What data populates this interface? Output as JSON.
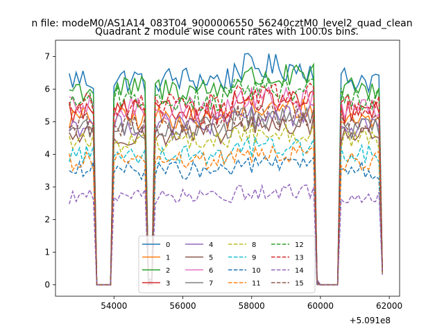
{
  "chart_data": {
    "type": "line",
    "suptitle": "n file: modeM0/AS1A14_083T04_9000006550_56240cztM0_level2_quad_clean",
    "title": "Quadrant 2 module wise count rates with 100.0s bins.",
    "xlabel": "",
    "ylabel": "",
    "offset_label": "+5.091e8",
    "xlim": [
      52300,
      62300
    ],
    "ylim": [
      -0.35,
      7.5
    ],
    "xticks": [
      54000,
      56000,
      58000,
      60000,
      62000
    ],
    "xtick_labels": [
      "54000",
      "56000",
      "58000",
      "60000",
      "62000"
    ],
    "yticks": [
      0,
      1,
      2,
      3,
      4,
      5,
      6,
      7
    ],
    "ytick_labels": [
      "0",
      "1",
      "2",
      "3",
      "4",
      "5",
      "6",
      "7"
    ],
    "x_start": 52700,
    "x_step": 100,
    "segments": [
      {
        "from": 52700,
        "to": 53400,
        "state": "on"
      },
      {
        "from": 53400,
        "to": 53900,
        "state": "off"
      },
      {
        "from": 54000,
        "to": 54900,
        "state": "on"
      },
      {
        "from": 55000,
        "to": 55100,
        "state": "dip"
      },
      {
        "from": 55200,
        "to": 59800,
        "state": "on"
      },
      {
        "from": 59800,
        "to": 59900,
        "state": "dip"
      },
      {
        "from": 60000,
        "to": 60500,
        "state": "off"
      },
      {
        "from": 60600,
        "to": 61700,
        "state": "on"
      },
      {
        "from": 61800,
        "to": 61800,
        "state": "end"
      }
    ],
    "series": [
      {
        "name": "0",
        "color": "#1f77b4",
        "dash": "solid",
        "level": 6.3
      },
      {
        "name": "1",
        "color": "#ff7f0e",
        "dash": "solid",
        "level": 5.1
      },
      {
        "name": "2",
        "color": "#2ca02c",
        "dash": "solid",
        "level": 6.0
      },
      {
        "name": "3",
        "color": "#d62728",
        "dash": "solid",
        "level": 5.3
      },
      {
        "name": "4",
        "color": "#9467bd",
        "dash": "solid",
        "level": 4.9
      },
      {
        "name": "5",
        "color": "#8c564b",
        "dash": "solid",
        "level": 4.6
      },
      {
        "name": "6",
        "color": "#e377c2",
        "dash": "solid",
        "level": 5.4
      },
      {
        "name": "7",
        "color": "#7f7f7f",
        "dash": "solid",
        "level": 4.8
      },
      {
        "name": "8",
        "color": "#bcbd22",
        "dash": "dashed",
        "level": 4.4
      },
      {
        "name": "9",
        "color": "#17becf",
        "dash": "dashed",
        "level": 4.0
      },
      {
        "name": "10",
        "color": "#1f77b4",
        "dash": "dashed",
        "level": 3.5
      },
      {
        "name": "11",
        "color": "#ff7f0e",
        "dash": "dashed",
        "level": 3.8
      },
      {
        "name": "12",
        "color": "#2ca02c",
        "dash": "dashed",
        "level": 5.7
      },
      {
        "name": "13",
        "color": "#d62728",
        "dash": "dashed",
        "level": 5.5
      },
      {
        "name": "14",
        "color": "#9467bd",
        "dash": "dashed",
        "level": 2.7
      },
      {
        "name": "15",
        "color": "#8c564b",
        "dash": "dashed",
        "level": 4.9
      }
    ],
    "legend": {
      "position": "lower-center",
      "columns": 4
    }
  }
}
